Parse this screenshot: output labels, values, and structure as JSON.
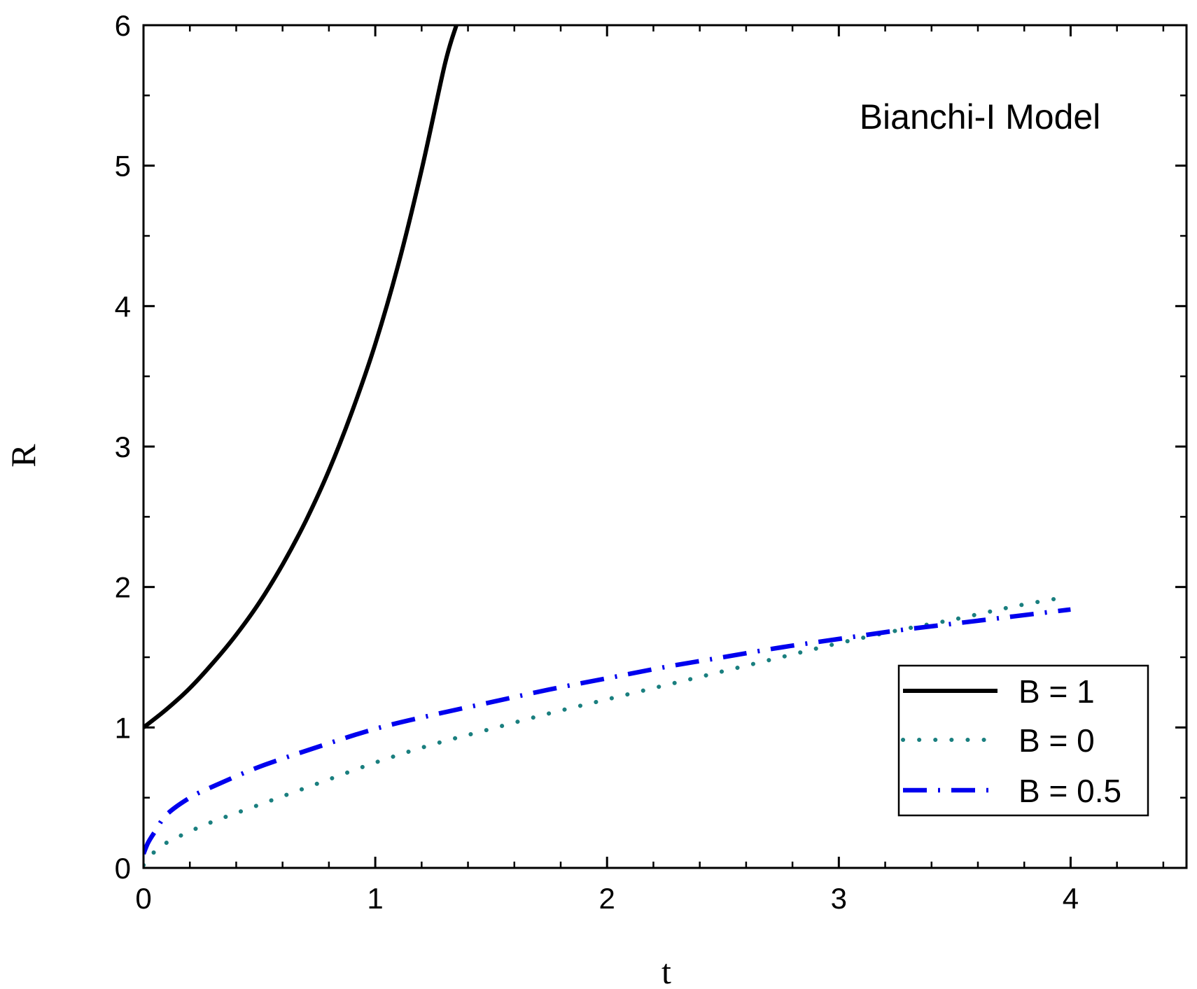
{
  "chart_data": {
    "type": "line",
    "title": "",
    "annotation": "Bianchi-I Model",
    "xlabel": "t",
    "ylabel": "R",
    "xlim": [
      0,
      4.5
    ],
    "ylim": [
      0,
      6
    ],
    "xticks": [
      0,
      1,
      2,
      3,
      4
    ],
    "yticks": [
      0,
      1,
      2,
      3,
      4,
      5,
      6
    ],
    "x_minor_step": 0.2,
    "y_minor_step": 0.5,
    "grid": false,
    "legend_position": "bottom-right",
    "series": [
      {
        "name": "B = 1",
        "color": "#000000",
        "style": "solid",
        "x": [
          0,
          0.1,
          0.2,
          0.3,
          0.4,
          0.5,
          0.6,
          0.7,
          0.8,
          0.9,
          1.0,
          1.1,
          1.2,
          1.3,
          1.35
        ],
        "y": [
          1.0,
          1.13,
          1.28,
          1.46,
          1.66,
          1.89,
          2.16,
          2.47,
          2.83,
          3.25,
          3.73,
          4.3,
          4.97,
          5.72,
          6.0
        ]
      },
      {
        "name": "B = 0",
        "color": "#1a7f7f",
        "style": "dotted",
        "x": [
          0,
          0.05,
          0.1,
          0.2,
          0.3,
          0.5,
          0.75,
          1.0,
          1.25,
          1.5,
          1.75,
          2.0,
          2.25,
          2.5,
          2.75,
          3.0,
          3.25,
          3.5,
          3.75,
          3.95
        ],
        "y": [
          0.02,
          0.12,
          0.18,
          0.26,
          0.33,
          0.45,
          0.6,
          0.75,
          0.88,
          0.99,
          1.1,
          1.2,
          1.3,
          1.4,
          1.5,
          1.6,
          1.69,
          1.77,
          1.86,
          1.92
        ]
      },
      {
        "name": "B = 0.5",
        "color": "#0000ee",
        "style": "dash-dot",
        "x": [
          0,
          0.02,
          0.05,
          0.1,
          0.2,
          0.3,
          0.5,
          0.75,
          1.0,
          1.25,
          1.5,
          1.75,
          2.0,
          2.25,
          2.5,
          2.75,
          3.0,
          3.25,
          3.5,
          3.75,
          4.0
        ],
        "y": [
          0.1,
          0.18,
          0.26,
          0.38,
          0.5,
          0.58,
          0.72,
          0.86,
          0.99,
          1.09,
          1.18,
          1.27,
          1.35,
          1.43,
          1.5,
          1.57,
          1.63,
          1.69,
          1.74,
          1.79,
          1.84
        ]
      }
    ]
  }
}
